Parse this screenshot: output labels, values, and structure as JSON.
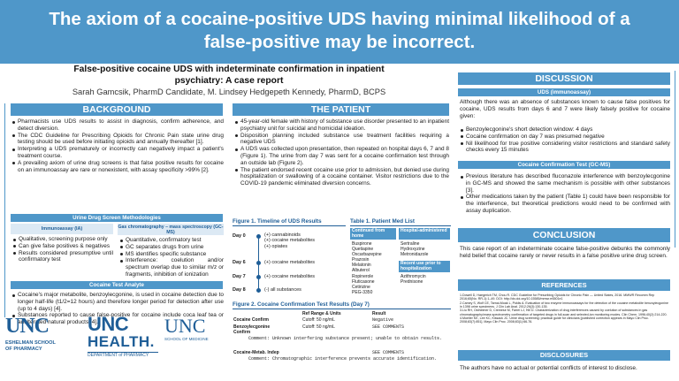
{
  "banner": {
    "line1": "The axiom of a cocaine-positive UDS having minimal likelihood of a",
    "line2": "false-positive may be incorrect."
  },
  "subtitle": {
    "line1": "False-positive cocaine UDS with indeterminate confirmation in inpatient",
    "line2": "psychiatry: A case report"
  },
  "authors": "Sarah Gamcsik, PharmD Candidate, M. Lindsey Hedgepeth Kennedy, PharmD, BCPS",
  "background": {
    "title": "BACKGROUND",
    "items": [
      "Pharmacists use UDS results to assist in diagnosis, confirm adherence, and detect diversion.",
      "The CDC Guideline for Prescribing Opioids for Chronic Pain state urine drug testing should be used before initiating opioids and annually thereafter [1].",
      "Interpreting a UDS prematurely or incorrectly can negatively impact a patient's treatment course.",
      "A prevailing axiom of urine drug screens is that false positive results for cocaine on an immunoassay are rare or nonexistent, with assay specificity >99% [2]."
    ],
    "methods_title": "Urine Drug Screen Methodologies",
    "immuno": {
      "title": "Immunoassay (IA)",
      "items": [
        "Qualitative, screening purpose only",
        "Can give false positives & negatives",
        "Results considered presumptive until confirmatory test"
      ]
    },
    "gcms": {
      "title": "Gas chromatography – mass spectroscopy (GC-MS)",
      "items": [
        "Quantitative, confirmatory test",
        "GC separates drugs from urine",
        "MS identifies specific substance",
        "Interference: coelution and/or spectrum overlap due to similar m/z or fragments, inhibition of ionization"
      ]
    },
    "analyte_title": "Cocaine Test Analyte",
    "analyte_items": [
      "Cocaine's major metabolite, benzoylecgonine, is used in cocaine detection due to longer half-life (t1/2=12 hours) and therefore longer period for detection after use (up to 4 days) [4].",
      "Substances reported to cause false-positive for cocaine include coca leaf tea or adulterated natural products [4]."
    ]
  },
  "logos": {
    "unc": "UNC",
    "eshelman_1": "ESHELMAN SCHOOL",
    "eshelman_2": "OF PHARMACY",
    "health_1": "UNC",
    "health_2": "HEALTH.",
    "dept": "DEPARTMENT of PHARMACY",
    "som_1": "UNC",
    "som_2": "SCHOOL OF MEDICINE"
  },
  "patient": {
    "title": "THE PATIENT",
    "items": [
      "45-year-old female with history of substance use disorder presented to an inpatient psychiatry unit for suicidal and homicidal ideation.",
      "Disposition planning included substance use treatment facilities requiring a negative UDS",
      "A UDS was collected upon presentation, then repeated on hospital days 6, 7 and 8 (Figure 1). The urine from day 7 was sent for a cocaine confirmation test through an outside lab (Figure 2).",
      "The patient endorsed recent cocaine use prior to admission, but denied use during hospitalization or swallowing of a cocaine container. Visitor restrictions due to the COVID-19 pandemic eliminated diversion concerns."
    ]
  },
  "figure1": {
    "title": "Figure 1. Timeline of UDS Results",
    "days": [
      {
        "day": "Day 0",
        "results": [
          "(+) cannabinoids",
          "(+) cocaine metabolites",
          "(+) opiates"
        ]
      },
      {
        "day": "Day 6",
        "results": [
          "(+) cocaine metabolites"
        ]
      },
      {
        "day": "Day 7",
        "results": [
          "(+) cocaine metabolites"
        ]
      },
      {
        "day": "Day 8",
        "results": [
          "(-) all substances"
        ]
      }
    ]
  },
  "table1": {
    "title": "Table 1. Patient Med List",
    "col1_head": "Continued from home",
    "col2_head": "Hospital-administered",
    "col1": [
      "Buspirone",
      "Quetiapine",
      "Oxcarbazepine",
      "Prazosin",
      "Melatonin",
      "Albuterol",
      "Ropinerole",
      "Fluticasone",
      "Cetirizine",
      "PEG-3350"
    ],
    "col2": [
      "Sertraline",
      "Hydroxyzine",
      "Metronidazole"
    ],
    "col2b_head": "Recent use prior to hospitalization",
    "col2b": [
      "Azithromycin",
      "Prednisone"
    ]
  },
  "figure2": {
    "title": "Figure 2. Cocaine Confirmation Test Results (Day 7)",
    "header": [
      "",
      "Ref Range & Units",
      "Result"
    ],
    "rows": [
      [
        "Cocaine Confirm",
        "Cutoff: 50 ng/mL",
        "Negative"
      ],
      [
        "Benzoylecgonine Confirm",
        "Cutoff: 50 ng/mL",
        "SEE COMMENTS"
      ]
    ],
    "comment1": "Comment: Unknown interfering substance present; unable to obtain results.",
    "row3": [
      "Cocaine-Metab. Indep",
      "",
      "SEE COMMENTS"
    ],
    "comment2": "Comment: Chromatographic interference prevents accurate identification."
  },
  "discussion": {
    "title": "DISCUSSION",
    "uds_title": "UDS (immunoassay)",
    "intro": "Although there was an absence of substances known to cause false positives for cocaine, UDS results from days 6 and 7 were likely falsely positive for cocaine given:",
    "uds_items": [
      "Benzoylecgonine's short detection window: 4 days",
      "Cocaine confirmation on day 7 was presumed negative",
      "Nil likelihood for true positive considering visitor restrictions and standard safety checks every 15 minutes"
    ],
    "gcms_title": "Cocaine Confirmation Test (GC-MS)",
    "gcms_items": [
      "Previous literature has described fluconazole interference with benzoylecgonine in GC-MS and showed the same mechanism is possible with other substances [3].",
      "Other medications taken by the patient (Table 1) could have been responsible for the interference, but theoretical predictions would need to be confirmed with assay duplication."
    ]
  },
  "conclusion": {
    "title": "CONCLUSION",
    "text": "This case report of an indeterminate cocaine false-positive debunks the commonly held belief that cocaine rarely or never results in a false positive urine drug screen."
  },
  "references": {
    "title": "REFERENCES",
    "items": [
      "1.Dowell D, Haegerich TM, Chou R. CDC Guideline for Prescribing Opioids for Chronic Pain — United States, 2016. MMWR Recomm Rep 2016;65(No. RR-1):1–49. DOI: http://dx.doi.org/10.15585/mmwr.rr6501e1",
      "2.Camey S, Wolf CE, Tarnai-Moak L, Poklis A. Evaluation of two enzyme immunoassays for the detection of the cocaine metabolite benzoylecgonine in 1398 urine specimens. J Clin Lab Anal. 2012;26(3):130-135.",
      "3.Liu RH, Ostheimer D, Cremese M, Farrel LJ, Hill D. Characterization of drug interferences caused by coelution of substances in gas chromatography/mass spectrometry confirmation of targeted drugs in full-scan and selected-ion monitoring modes. Clin Chem. 1996;40(2):214-220.",
      "4.Moeller KE, Lee KC, Kissack JC. Urine drug screening: practical guide for clinicians [published correction appears in Mayo Clin Proc. 2008;83(7):851]. Mayo Clin Proc. 2008;83(1):66-76."
    ]
  },
  "disclosures": {
    "title": "DISCLOSURES",
    "text": "The authors have no actual or potential conflicts of interest to disclose."
  },
  "colors": {
    "accent": "#4f97c9",
    "unc_blue": "#1f5e97",
    "bg": "#ffffff"
  }
}
